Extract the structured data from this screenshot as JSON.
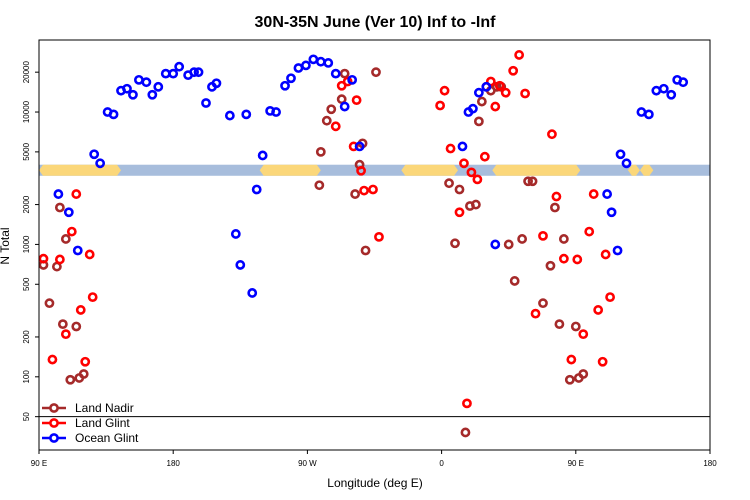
{
  "chart_data": {
    "type": "scatter",
    "title": "30N-35N June (Ver 10)   Inf to -Inf",
    "xlabel": "Longitude (deg E)",
    "ylabel": "N Total",
    "yscale": "log",
    "xlim": [
      90,
      540
    ],
    "ylim": [
      28,
      35000
    ],
    "x_ticks": [
      {
        "value": 90,
        "label": "90 E"
      },
      {
        "value": 180,
        "label": "180"
      },
      {
        "value": 270,
        "label": "90 W"
      },
      {
        "value": 360,
        "label": "0"
      },
      {
        "value": 450,
        "label": "90 E"
      },
      {
        "value": 540,
        "label": "180"
      }
    ],
    "y_ticks": [
      {
        "value": 50,
        "label": "50"
      },
      {
        "value": 100,
        "label": "100"
      },
      {
        "value": 200,
        "label": "200"
      },
      {
        "value": 500,
        "label": "500"
      },
      {
        "value": 1000,
        "label": "1000"
      },
      {
        "value": 2000,
        "label": "2000"
      },
      {
        "value": 5000,
        "label": "5000"
      },
      {
        "value": 10000,
        "label": "10000"
      },
      {
        "value": 20000,
        "label": "20000"
      }
    ],
    "reference_line": 50,
    "land_ocean_band": {
      "value_low": 3300,
      "value_high": 4000,
      "ocean_color": "#a7bddc",
      "land_color": "#fbd77a",
      "land_ranges": [
        [
          90,
          145
        ],
        [
          238,
          279
        ],
        [
          333,
          371
        ],
        [
          394,
          453
        ],
        [
          485,
          493
        ],
        [
          493,
          502
        ]
      ]
    },
    "series": [
      {
        "name": "Land Nadir",
        "color": "#a52a2a",
        "points": [
          [
            93,
            700
          ],
          [
            97,
            360
          ],
          [
            102,
            680
          ],
          [
            104,
            1900
          ],
          [
            106,
            250
          ],
          [
            108,
            1100
          ],
          [
            111,
            95
          ],
          [
            115,
            240
          ],
          [
            117,
            98
          ],
          [
            120,
            105
          ],
          [
            309,
            900
          ],
          [
            307,
            5800
          ],
          [
            305,
            4000
          ],
          [
            302,
            2400
          ],
          [
            286,
            10500
          ],
          [
            283,
            8600
          ],
          [
            279,
            5000
          ],
          [
            278,
            2800
          ],
          [
            295,
            19500
          ],
          [
            293,
            12500
          ],
          [
            316,
            20000
          ],
          [
            365,
            2900
          ],
          [
            369,
            1020
          ],
          [
            372,
            2600
          ],
          [
            376,
            38
          ],
          [
            379,
            1950
          ],
          [
            383,
            2000
          ],
          [
            385,
            8500
          ],
          [
            387,
            12000
          ],
          [
            390,
            15500
          ],
          [
            393,
            14500
          ],
          [
            397,
            15500
          ],
          [
            400,
            15500
          ],
          [
            405,
            1000
          ],
          [
            409,
            530
          ],
          [
            414,
            1100
          ],
          [
            418,
            3000
          ],
          [
            421,
            3000
          ],
          [
            428,
            360
          ],
          [
            433,
            690
          ],
          [
            436,
            1900
          ],
          [
            439,
            250
          ],
          [
            442,
            1100
          ],
          [
            446,
            95
          ],
          [
            450,
            240
          ],
          [
            452,
            98
          ],
          [
            455,
            105
          ]
        ]
      },
      {
        "name": "Land Glint",
        "color": "#ff0000",
        "points": [
          [
            93,
            780
          ],
          [
            99,
            135
          ],
          [
            104,
            770
          ],
          [
            108,
            210
          ],
          [
            112,
            1250
          ],
          [
            115,
            2400
          ],
          [
            118,
            320
          ],
          [
            121,
            130
          ],
          [
            124,
            840
          ],
          [
            126,
            400
          ],
          [
            289,
            7800
          ],
          [
            293,
            15800
          ],
          [
            297,
            17000
          ],
          [
            301,
            5500
          ],
          [
            303,
            12300
          ],
          [
            306,
            3600
          ],
          [
            308,
            2550
          ],
          [
            314,
            2600
          ],
          [
            318,
            1140
          ],
          [
            359,
            11200
          ],
          [
            362,
            14500
          ],
          [
            366,
            5300
          ],
          [
            372,
            1750
          ],
          [
            375,
            4100
          ],
          [
            377,
            63
          ],
          [
            380,
            3500
          ],
          [
            384,
            3100
          ],
          [
            389,
            4600
          ],
          [
            393,
            17000
          ],
          [
            396,
            11000
          ],
          [
            399,
            15800
          ],
          [
            403,
            14000
          ],
          [
            408,
            20500
          ],
          [
            412,
            27000
          ],
          [
            416,
            13800
          ],
          [
            423,
            300
          ],
          [
            428,
            1160
          ],
          [
            434,
            6800
          ],
          [
            437,
            2300
          ],
          [
            442,
            780
          ],
          [
            447,
            135
          ],
          [
            451,
            770
          ],
          [
            455,
            210
          ],
          [
            459,
            1250
          ],
          [
            462,
            2400
          ],
          [
            465,
            320
          ],
          [
            468,
            130
          ],
          [
            470,
            840
          ],
          [
            473,
            400
          ]
        ]
      },
      {
        "name": "Ocean Glint",
        "color": "#0000ff",
        "points": [
          [
            127,
            4800
          ],
          [
            131,
            4100
          ],
          [
            136,
            10000
          ],
          [
            140,
            9600
          ],
          [
            145,
            14500
          ],
          [
            149,
            15000
          ],
          [
            153,
            13500
          ],
          [
            157,
            17500
          ],
          [
            162,
            16800
          ],
          [
            166,
            13500
          ],
          [
            170,
            15500
          ],
          [
            175,
            19500
          ],
          [
            180,
            19500
          ],
          [
            184,
            22000
          ],
          [
            190,
            19000
          ],
          [
            194,
            20000
          ],
          [
            197,
            20000
          ],
          [
            202,
            11700
          ],
          [
            206,
            15500
          ],
          [
            209,
            16500
          ],
          [
            218,
            9400
          ],
          [
            222,
            1200
          ],
          [
            225,
            700
          ],
          [
            229,
            9600
          ],
          [
            233,
            430
          ],
          [
            236,
            2600
          ],
          [
            240,
            4700
          ],
          [
            245,
            10200
          ],
          [
            249,
            10000
          ],
          [
            255,
            15800
          ],
          [
            259,
            18000
          ],
          [
            264,
            21500
          ],
          [
            269,
            22500
          ],
          [
            274,
            25000
          ],
          [
            279,
            24000
          ],
          [
            284,
            23500
          ],
          [
            289,
            19500
          ],
          [
            295,
            11000
          ],
          [
            300,
            17500
          ],
          [
            305,
            5500
          ],
          [
            374,
            5500
          ],
          [
            378,
            10000
          ],
          [
            381,
            10600
          ],
          [
            385,
            14000
          ],
          [
            390,
            15500
          ],
          [
            396,
            1000
          ],
          [
            103,
            2400
          ],
          [
            110,
            1750
          ],
          [
            116,
            900
          ],
          [
            471,
            2400
          ],
          [
            474,
            1750
          ],
          [
            478,
            900
          ],
          [
            480,
            4800
          ],
          [
            484,
            4100
          ],
          [
            494,
            10000
          ],
          [
            499,
            9600
          ],
          [
            504,
            14500
          ],
          [
            509,
            15000
          ],
          [
            514,
            13500
          ],
          [
            518,
            17500
          ],
          [
            522,
            16800
          ]
        ]
      }
    ],
    "legend": {
      "placement": "bottom-left",
      "entries": [
        "Land Nadir",
        "Land Glint",
        "Ocean Glint"
      ]
    }
  }
}
